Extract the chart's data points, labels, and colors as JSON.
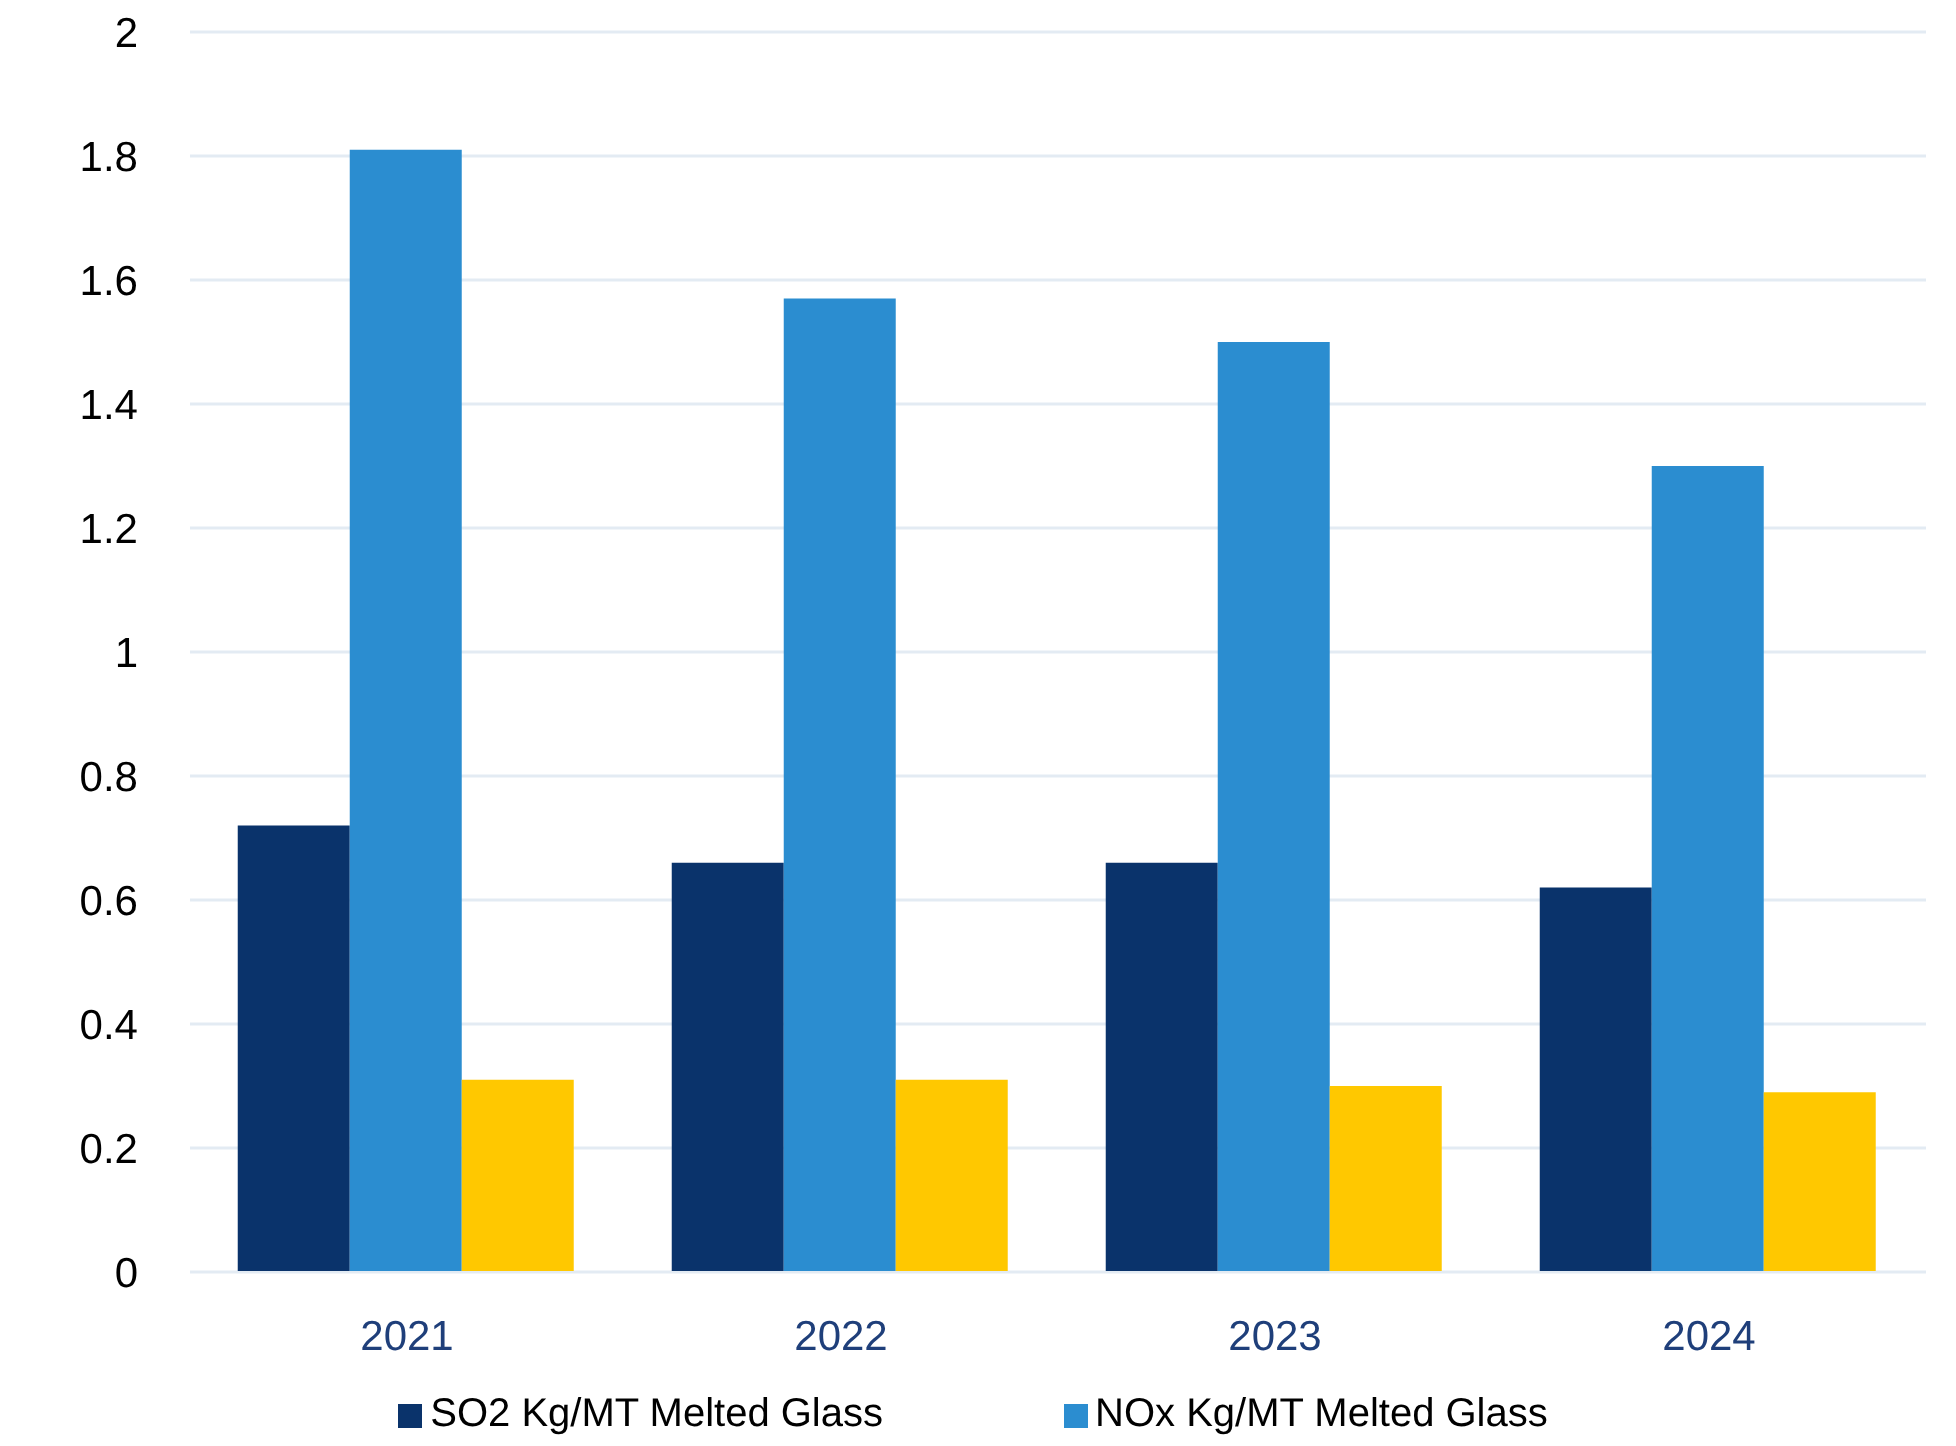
{
  "chart_data": {
    "type": "bar",
    "categories": [
      "2021",
      "2022",
      "2023",
      "2024"
    ],
    "series": [
      {
        "name": "SO2 Kg/MT Melted Glass",
        "color": "#0a336b",
        "values": [
          0.72,
          0.66,
          0.66,
          0.62
        ]
      },
      {
        "name": "NOx Kg/MT Melted Glass",
        "color": "#2b8dd0",
        "values": [
          1.81,
          1.57,
          1.5,
          1.3
        ]
      },
      {
        "color": "#ffc800",
        "values": [
          0.31,
          0.31,
          0.3,
          0.29
        ]
      }
    ],
    "ylim": [
      0,
      2
    ],
    "yticks": [
      0,
      0.2,
      0.4,
      0.6,
      0.8,
      1,
      1.2,
      1.4,
      1.6,
      1.8,
      2
    ],
    "grid": "y",
    "legend": "bottom"
  }
}
